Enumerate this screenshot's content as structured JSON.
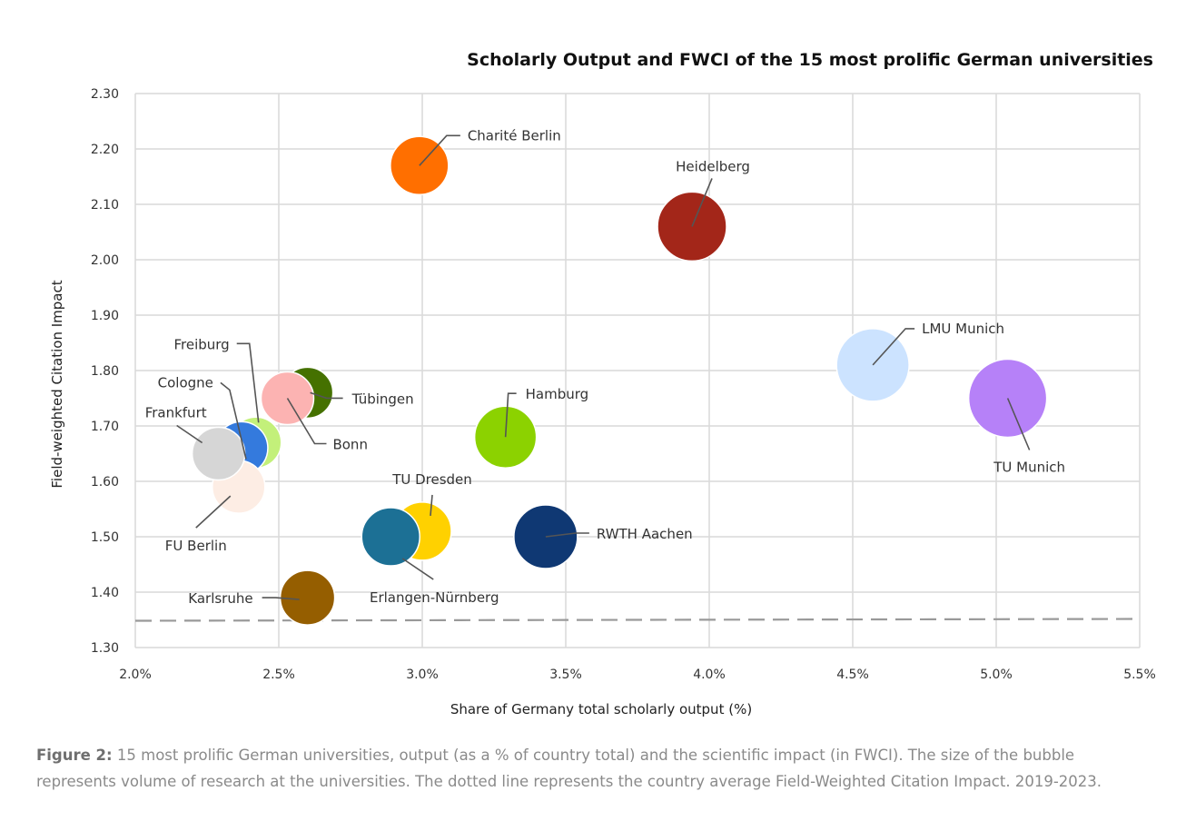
{
  "chart_data": {
    "type": "scatter",
    "subtype": "bubble",
    "title": "Scholarly Output and FWCI of the 15 most prolific German universities",
    "xlabel": "Share of Germany total scholarly output (%)",
    "ylabel": "Field-weighted Citation Impact",
    "xlim": [
      2.0,
      5.5
    ],
    "ylim": [
      1.3,
      2.3
    ],
    "x_ticks": [
      "2.0%",
      "2.5%",
      "3.0%",
      "3.5%",
      "4.0%",
      "4.5%",
      "5.0%",
      "5.5%"
    ],
    "x_tick_values": [
      2.0,
      2.5,
      3.0,
      3.5,
      4.0,
      4.5,
      5.0,
      5.5
    ],
    "y_ticks": [
      "1.30",
      "1.40",
      "1.50",
      "1.60",
      "1.70",
      "1.80",
      "1.90",
      "2.00",
      "2.10",
      "2.20",
      "2.30"
    ],
    "y_tick_values": [
      1.3,
      1.4,
      1.5,
      1.6,
      1.7,
      1.8,
      1.9,
      2.0,
      2.1,
      2.2,
      2.3
    ],
    "grid": true,
    "legend": "none",
    "reference_line": {
      "label": "Country average FWCI",
      "y": 1.35,
      "style": "dashed",
      "color": "#999999"
    },
    "points": [
      {
        "name": "Charité Berlin",
        "x": 2.99,
        "y": 2.17,
        "size": 32,
        "color": "#FF6F00",
        "label_pos": "upper-right"
      },
      {
        "name": "Heidelberg",
        "x": 3.94,
        "y": 2.06,
        "size": 38,
        "color": "#A32619",
        "label_pos": "top"
      },
      {
        "name": "LMU Munich",
        "x": 4.57,
        "y": 1.81,
        "size": 40,
        "color": "#CCE3FF",
        "label_pos": "upper-right"
      },
      {
        "name": "TU Munich",
        "x": 5.04,
        "y": 1.75,
        "size": 43,
        "color": "#B681F8",
        "label_pos": "bottom"
      },
      {
        "name": "Hamburg",
        "x": 3.29,
        "y": 1.68,
        "size": 34,
        "color": "#8CD200",
        "label_pos": "upper-right"
      },
      {
        "name": "RWTH Aachen",
        "x": 3.43,
        "y": 1.5,
        "size": 35,
        "color": "#0F3873",
        "label_pos": "right"
      },
      {
        "name": "TU Dresden",
        "x": 3.0,
        "y": 1.51,
        "size": 32,
        "color": "#FFD100",
        "label_pos": "top"
      },
      {
        "name": "Erlangen-Nürnberg",
        "x": 2.89,
        "y": 1.5,
        "size": 32,
        "color": "#1C7095",
        "label_pos": "bottom-right"
      },
      {
        "name": "Karlsruhe",
        "x": 2.6,
        "y": 1.39,
        "size": 30,
        "color": "#955E00",
        "label_pos": "left"
      },
      {
        "name": "Tübingen",
        "x": 2.6,
        "y": 1.76,
        "size": 28,
        "color": "#457100",
        "label_pos": "right"
      },
      {
        "name": "Bonn",
        "x": 2.53,
        "y": 1.75,
        "size": 29,
        "color": "#FCB3B2",
        "label_pos": "bottom-right"
      },
      {
        "name": "Freiburg",
        "x": 2.42,
        "y": 1.67,
        "size": 28,
        "color": "#C3F07A",
        "label_pos": "upper-left"
      },
      {
        "name": "Cologne",
        "x": 2.37,
        "y": 1.66,
        "size": 29,
        "color": "#347ADD",
        "label_pos": "upper-left"
      },
      {
        "name": "Frankfurt",
        "x": 2.29,
        "y": 1.65,
        "size": 29,
        "color": "#D6D6D6",
        "label_pos": "upper-left"
      },
      {
        "name": "FU Berlin",
        "x": 2.36,
        "y": 1.59,
        "size": 29,
        "color": "#FDEDE4",
        "label_pos": "bottom-left"
      }
    ]
  },
  "caption": {
    "figure_label": "Figure 2:",
    "text": " 15 most prolific German universities, output (as a % of country total) and the scientific impact (in FWCI). The size of the bubble represents volume of research at the universities. The dotted line represents the country average Field-Weighted Citation Impact. 2019-2023."
  }
}
